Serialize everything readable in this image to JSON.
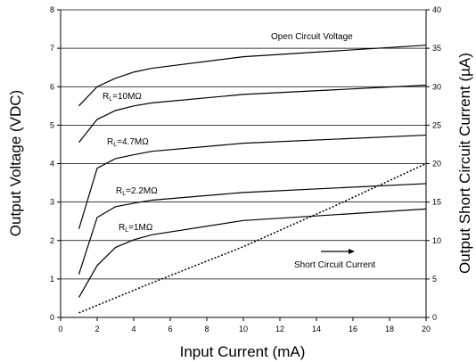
{
  "chart_data": {
    "type": "line",
    "title": "",
    "xlabel": "Input Current (mA)",
    "ylabel": "Output Voltage (VDC)",
    "y2label": "Output Short Circuit Current (µA)",
    "xlim": [
      0,
      20
    ],
    "ylim": [
      0,
      8
    ],
    "y2lim": [
      0,
      40
    ],
    "x_ticks": [
      0,
      2,
      4,
      6,
      8,
      10,
      12,
      14,
      16,
      18,
      20
    ],
    "y_ticks": [
      0,
      1,
      2,
      3,
      4,
      5,
      6,
      7,
      8
    ],
    "y2_ticks": [
      0,
      5,
      10,
      15,
      20,
      25,
      30,
      35,
      40
    ],
    "grid": "horizontal",
    "legend": "none",
    "series": [
      {
        "name": "Open Circuit Voltage",
        "axis": "left",
        "label": {
          "main": "Open Circuit Voltage",
          "sub": "",
          "after": ""
        },
        "x": [
          1,
          2,
          3,
          4,
          5,
          10,
          20
        ],
        "y": [
          5.5,
          6.0,
          6.22,
          6.38,
          6.48,
          6.78,
          7.08
        ]
      },
      {
        "name": "RL=10MΩ",
        "axis": "left",
        "label": {
          "main": "R",
          "sub": "L",
          "after": "=10MΩ"
        },
        "x": [
          1,
          2,
          3,
          4,
          5,
          10,
          20
        ],
        "y": [
          4.55,
          5.15,
          5.38,
          5.5,
          5.58,
          5.8,
          6.04
        ]
      },
      {
        "name": "RL=4.7MΩ",
        "axis": "left",
        "label": {
          "main": "R",
          "sub": "L",
          "after": "=4.7MΩ"
        },
        "x": [
          1,
          2,
          3,
          4,
          5,
          10,
          20
        ],
        "y": [
          2.3,
          3.88,
          4.13,
          4.23,
          4.32,
          4.53,
          4.74
        ]
      },
      {
        "name": "RL=2.2MΩ",
        "axis": "left",
        "label": {
          "main": "R",
          "sub": "L",
          "after": "=2.2MΩ"
        },
        "x": [
          1,
          2,
          3,
          4,
          5,
          10,
          20
        ],
        "y": [
          1.12,
          2.6,
          2.88,
          2.97,
          3.05,
          3.25,
          3.48
        ]
      },
      {
        "name": "RL=1MΩ",
        "axis": "left",
        "label": {
          "main": "R",
          "sub": "L",
          "after": "=1MΩ"
        },
        "x": [
          1,
          2,
          3,
          4,
          5,
          10,
          20
        ],
        "y": [
          0.52,
          1.35,
          1.82,
          2.02,
          2.15,
          2.52,
          2.82
        ]
      },
      {
        "name": "Short Circuit Current",
        "axis": "right",
        "dashed": true,
        "label": {
          "main": "Short Circuit Current",
          "sub": "",
          "after": ""
        },
        "x": [
          1,
          5,
          10,
          15,
          20
        ],
        "y": [
          0.6,
          4.5,
          9.2,
          14.5,
          20.0
        ]
      }
    ]
  }
}
